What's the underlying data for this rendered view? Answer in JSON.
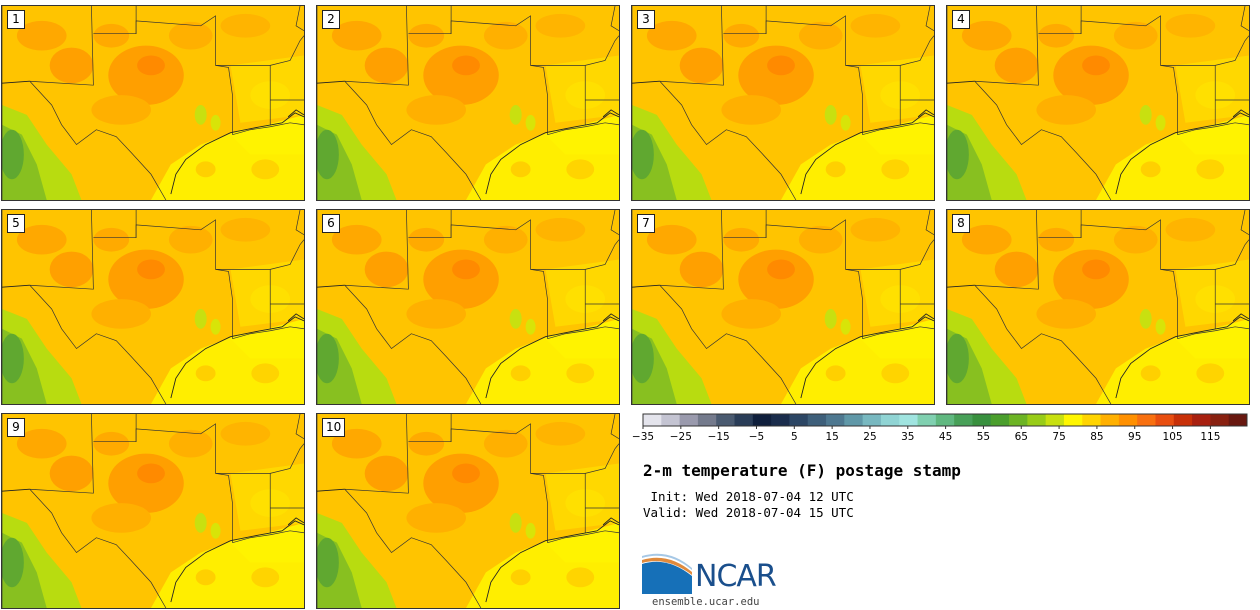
{
  "title": "2-m temperature (F) postage stamp",
  "init_line": " Init: Wed 2018-07-04 12 UTC",
  "valid_line": "Valid: Wed 2018-07-04 15 UTC",
  "panels": [
    "1",
    "2",
    "3",
    "4",
    "5",
    "6",
    "7",
    "8",
    "9",
    "10"
  ],
  "colorbar": {
    "tick_labels": [
      "−35",
      "−25",
      "−15",
      "−5",
      "5",
      "15",
      "25",
      "35",
      "45",
      "55",
      "65",
      "75",
      "85",
      "95",
      "105",
      "115"
    ],
    "colors": [
      "#e4e4ec",
      "#c4c4d2",
      "#9a9aad",
      "#747a8c",
      "#4a5a70",
      "#2a3d58",
      "#0f1f3c",
      "#1a2c4c",
      "#2c4664",
      "#3e5f7a",
      "#4e7890",
      "#6098a8",
      "#78b8c0",
      "#90d4d4",
      "#a0e4e0",
      "#80d0b0",
      "#60b880",
      "#48a058",
      "#38903e",
      "#4a9e2c",
      "#6cb424",
      "#98cc18",
      "#c8e010",
      "#fff600",
      "#ffd400",
      "#ffb000",
      "#ff9000",
      "#f87010",
      "#e84e10",
      "#c83008",
      "#a82010",
      "#882010",
      "#681810"
    ]
  },
  "logo": {
    "text": "NCAR",
    "url": "ensemble.ucar.edu"
  }
}
